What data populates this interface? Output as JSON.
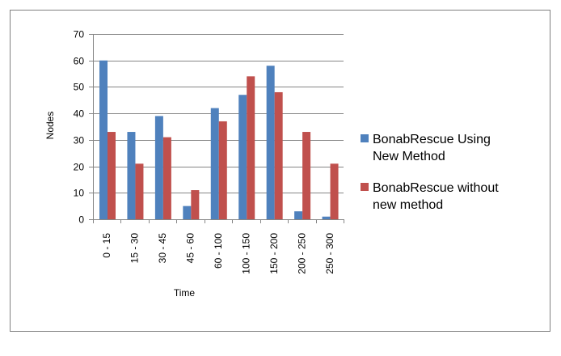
{
  "chart_data": {
    "type": "bar",
    "title": "",
    "xlabel": "Time",
    "ylabel": "Nodes",
    "ylim": [
      0,
      70
    ],
    "yticks": [
      0,
      10,
      20,
      30,
      40,
      50,
      60,
      70
    ],
    "grid": true,
    "legend_position": "right",
    "categories": [
      "0 - 15",
      "15 - 30",
      "30 - 45",
      "45 - 60",
      "60 - 100",
      "100 - 150",
      "150 - 200",
      "200 - 250",
      "250 - 300"
    ],
    "series": [
      {
        "name": "BonabRescue Using New Method",
        "legend_lines": [
          "BonabRescue Using",
          "New Method"
        ],
        "color": "#4F81BD",
        "values": [
          60,
          33,
          39,
          5,
          42,
          47,
          58,
          3,
          1
        ]
      },
      {
        "name": "BonabRescue without new method",
        "legend_lines": [
          "BonabRescue without",
          "new method"
        ],
        "color": "#C0504D",
        "values": [
          33,
          21,
          31,
          11,
          37,
          54,
          48,
          33,
          21
        ]
      }
    ]
  }
}
